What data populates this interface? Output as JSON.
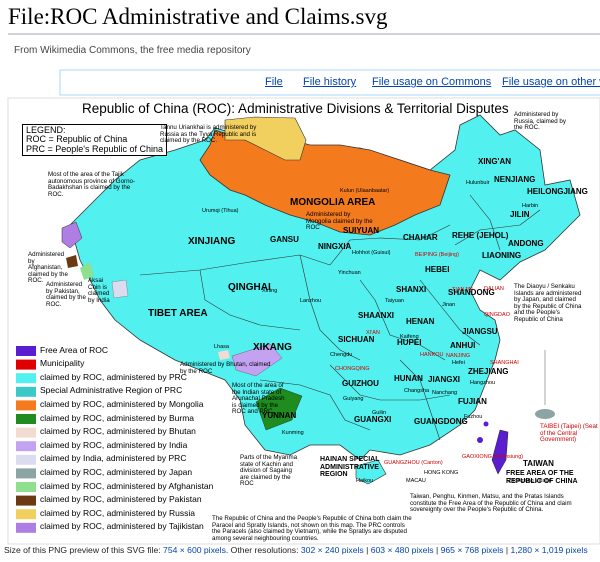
{
  "header": {
    "title": "File:ROC Administrative and Claims.svg",
    "subtitle": "From Wikimedia Commons, the free media repository"
  },
  "tabs": [
    "File",
    "File history",
    "File usage on Commons",
    "File usage on other wi"
  ],
  "map": {
    "title": "Republic of China (ROC): Administrative Divisions & Territorial Disputes",
    "legend_box": [
      "LEGEND:",
      "ROC = Republic of China",
      "PRC = People's Republic of China"
    ],
    "regions": [
      "XINJIANG",
      "TIBET AREA",
      "QINGHAI",
      "GANSU",
      "NINGXIA",
      "MONGOLIA AREA",
      "SUIYUAN",
      "CHAHAR",
      "REHE (JEHOL)",
      "XIKANG",
      "SICHUAN",
      "YUNNAN",
      "SHAANXI",
      "SHANXI",
      "HENAN",
      "HUPEI",
      "HUNAN",
      "GUIZHOU",
      "GUANGXI",
      "GUANGDONG",
      "JIANGXI",
      "FUJIAN",
      "SHANDONG",
      "HEBEI",
      "LIAONING",
      "JILIN",
      "XING'AN",
      "NENJIANG",
      "HEILONGJIANG",
      "ANDONG",
      "TAIWAN",
      "FREE AREA OF THE REPUBLIC OF CHINA",
      "HAINAN SPECIAL ADMINISTRATIVE REGION",
      "ZHEJIANG",
      "JIANGSU",
      "ANHUI"
    ],
    "cities": [
      "Urumqi (Tihua)",
      "Kulun (Ulaanbaatar)",
      "Hulunbuir",
      "Harbin",
      "Lhasa",
      "Xining",
      "Lanzhou",
      "Yinchuan",
      "Chengdu",
      "CHONGQING",
      "Kunming",
      "Guiyang",
      "Guilin",
      "GUANGZHOU (Canton)",
      "HONG KONG",
      "MACAU",
      "Haikou",
      "XI'AN",
      "BEIPING (Beijing)",
      "TIANJIN",
      "DALIAN",
      "QINGDAO",
      "NANJING",
      "SHANGHAI",
      "HANKOU",
      "Taiyuan",
      "Kaifeng",
      "Hefei",
      "Fuzhou",
      "GAOXIONG (Kaohsiung)",
      "Zhongxing Village",
      "Hohhot (Guisui)",
      "Changsha",
      "Nanchang",
      "Hangzhou",
      "Jinan"
    ],
    "annotations": [
      "Tannu Uriankhai is administered by Russia as the Tyva Republic and is claimed by the ROC.",
      "Most of the area of the Tajik autonomous province of Gorno-Badakhshan is claimed by the ROC.",
      "Administered by Afghanistan, claimed by the ROC.",
      "Administered by Pakistan, claimed by the ROC.",
      "Aksai Chin is claimed by India",
      "Administered by Russia, claimed by the ROC.",
      "Administered by Mongolia claimed by the ROC",
      "The Diaoyu / Senkaku Islands are administered by Japan, and claimed by the Republic of China and the People's Republic of China",
      "Administered by Bhutan, claimed by the ROC",
      "Most of the area of the Indian state of Arunachal Pradesh is claimed by the ROC and PRC.",
      "Parts of the Myanma state of Kachin and division of Sagaing are claimed by the ROC",
      "The Republic of China and the People's Republic of China both claim the Paracel and Spratly Islands, not shown on this map. The PRC controls the Paracels (also claimed by Vietnam), while the Spratlys are disputed among several neighbouring countries.",
      "Taiwan, Penghu, Kinmen, Matsu, and the Pratas Islands constitute the Free Area of the Republic of China and claim sovereignty over the People's Republic of China.",
      "TAIBEI (Taipei) (Seat of the Central Government)"
    ],
    "legend": [
      {
        "label": "Free Area of ROC",
        "color": "#5a1ed0"
      },
      {
        "label": "Municipality",
        "color": "#e00000"
      },
      {
        "label": "claimed by ROC, administered by PRC",
        "color": "#52f0ee"
      },
      {
        "label": "Special Administrative Region of PRC",
        "color": "#3cc8c8"
      },
      {
        "label": "claimed by ROC, administered by Mongolia",
        "color": "#f47a1e"
      },
      {
        "label": "claimed by ROC, administered by Burma",
        "color": "#1e8c1e"
      },
      {
        "label": "claimed by ROC, administered by Bhutan",
        "color": "#f2dcd2"
      },
      {
        "label": "claimed by ROC, administered by India",
        "color": "#c4a2f2"
      },
      {
        "label": "claimed by India, administered by PRC",
        "color": "#dcdcf0"
      },
      {
        "label": "claimed by ROC, administered by Japan",
        "color": "#8ca4a4"
      },
      {
        "label": "claimed by ROC, administered by Afghanistan",
        "color": "#8ee08e"
      },
      {
        "label": "claimed by ROC, administered by Pakistan",
        "color": "#6b3a12"
      },
      {
        "label": "claimed by ROC, administered by Russia",
        "color": "#f2d060"
      },
      {
        "label": "claimed by ROC, administered by Tajikistan",
        "color": "#ae7ee2"
      }
    ]
  },
  "footer": {
    "text": "Size of this PNG preview of this SVG file:",
    "preview": "754 × 600 pixels",
    "other": ". Other resolutions:",
    "separator": "|",
    "resolutions": [
      "302 × 240 pixels",
      "603 × 480 pixels",
      "965 × 768 pixels",
      "1,280 × 1,019 pixels"
    ]
  }
}
